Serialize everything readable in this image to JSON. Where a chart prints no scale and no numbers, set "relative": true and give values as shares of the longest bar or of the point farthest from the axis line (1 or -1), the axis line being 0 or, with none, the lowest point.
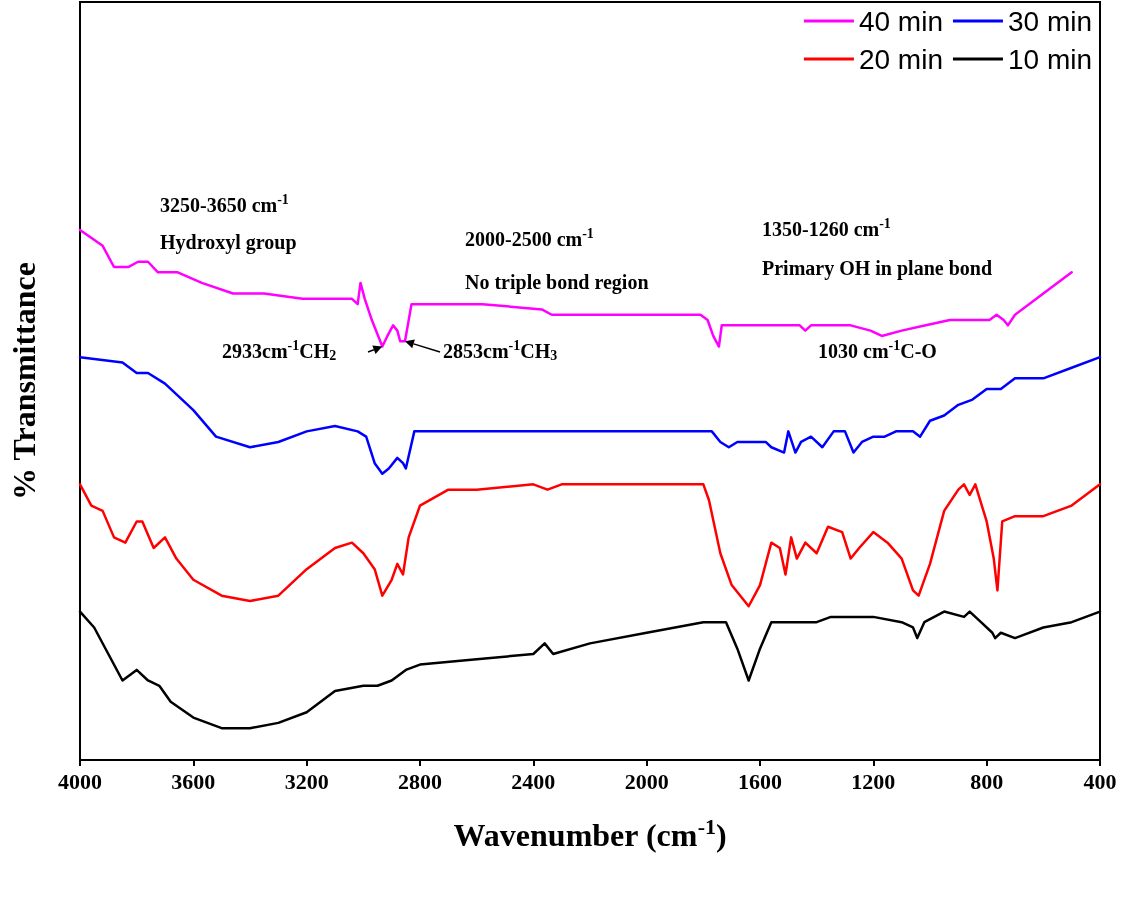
{
  "chart_data": {
    "type": "line",
    "relative": true,
    "xlabel": "Wavenumber (cm$^{-1}$)",
    "ylabel": "% Transmittance",
    "xlim": [
      4000,
      400
    ],
    "xticks": [
      4000,
      3600,
      3200,
      2800,
      2400,
      2000,
      1600,
      1200,
      800,
      400
    ],
    "legend": "top right",
    "marker": "none",
    "line_style": "solid",
    "annotations": [
      "3250-3650 cm$^{-1}$",
      "Hydroxyl group",
      "2000-2500 cm$^{-1}$",
      "No triple bond region",
      "1350-1260 cm$^{-1}$",
      "Primary OH in plane bond",
      {
        "text": "2933cm$^{-1}$CH$_{2}$",
        "x": 2933,
        "y": 0.78
      },
      {
        "text": "2853cm$^{-1}$CH$_{3}$",
        "x": 2853,
        "y": 0.79
      },
      "1030 cm$^{-1}$C-O"
    ],
    "series": [
      {
        "name": "40 min",
        "color": "#ff00ff",
        "x": [
          4000,
          3920,
          3880,
          3830,
          3795,
          3760,
          3725,
          3655,
          3570,
          3460,
          3350,
          3215,
          3075,
          3040,
          3020,
          3010,
          2995,
          2970,
          2933,
          2915,
          2895,
          2880,
          2870,
          2853,
          2830,
          2790,
          2580,
          2370,
          2335,
          2300,
          2160,
          1985,
          1810,
          1785,
          1765,
          1745,
          1735,
          1665,
          1490,
          1460,
          1440,
          1420,
          1280,
          1210,
          1170,
          1100,
          1015,
          930,
          790,
          765,
          740,
          725,
          700,
          600,
          500
        ],
        "values": [
          1.0,
          0.97,
          0.93,
          0.93,
          0.94,
          0.94,
          0.92,
          0.92,
          0.9,
          0.88,
          0.88,
          0.87,
          0.87,
          0.87,
          0.86,
          0.9,
          0.87,
          0.83,
          0.78,
          0.8,
          0.82,
          0.81,
          0.79,
          0.79,
          0.86,
          0.86,
          0.86,
          0.85,
          0.84,
          0.84,
          0.84,
          0.84,
          0.84,
          0.83,
          0.8,
          0.78,
          0.82,
          0.82,
          0.82,
          0.82,
          0.81,
          0.82,
          0.82,
          0.81,
          0.8,
          0.81,
          0.82,
          0.83,
          0.83,
          0.84,
          0.83,
          0.82,
          0.84,
          0.88,
          0.92
        ]
      },
      {
        "name": "30 min",
        "color": "#0000ff",
        "x": [
          4000,
          3850,
          3800,
          3760,
          3700,
          3600,
          3520,
          3400,
          3300,
          3200,
          3100,
          3020,
          2990,
          2960,
          2933,
          2910,
          2880,
          2860,
          2850,
          2820,
          2780,
          2500,
          2200,
          1800,
          1770,
          1740,
          1710,
          1680,
          1620,
          1580,
          1560,
          1515,
          1500,
          1475,
          1455,
          1420,
          1380,
          1340,
          1300,
          1270,
          1240,
          1200,
          1160,
          1120,
          1060,
          1035,
          1000,
          950,
          900,
          850,
          800,
          750,
          700,
          600,
          500,
          400
        ],
        "values": [
          0.76,
          0.75,
          0.73,
          0.73,
          0.71,
          0.66,
          0.61,
          0.59,
          0.6,
          0.62,
          0.63,
          0.62,
          0.61,
          0.56,
          0.54,
          0.55,
          0.57,
          0.56,
          0.55,
          0.62,
          0.62,
          0.62,
          0.62,
          0.62,
          0.62,
          0.6,
          0.59,
          0.6,
          0.6,
          0.6,
          0.59,
          0.58,
          0.62,
          0.58,
          0.6,
          0.61,
          0.59,
          0.62,
          0.62,
          0.58,
          0.6,
          0.61,
          0.61,
          0.62,
          0.62,
          0.61,
          0.64,
          0.65,
          0.67,
          0.68,
          0.7,
          0.7,
          0.72,
          0.72,
          0.74,
          0.76
        ]
      },
      {
        "name": "20 min",
        "color": "#ff0000",
        "x": [
          4000,
          3960,
          3920,
          3880,
          3840,
          3800,
          3780,
          3740,
          3700,
          3660,
          3600,
          3500,
          3400,
          3300,
          3200,
          3100,
          3040,
          3000,
          2960,
          2933,
          2900,
          2880,
          2860,
          2840,
          2800,
          2700,
          2600,
          2400,
          2350,
          2300,
          2000,
          1800,
          1780,
          1740,
          1700,
          1640,
          1600,
          1560,
          1530,
          1510,
          1490,
          1470,
          1440,
          1400,
          1360,
          1310,
          1280,
          1250,
          1200,
          1150,
          1100,
          1060,
          1040,
          1000,
          950,
          900,
          880,
          860,
          840,
          800,
          775,
          762,
          745,
          700,
          600,
          500,
          400
        ],
        "values": [
          0.52,
          0.48,
          0.47,
          0.42,
          0.41,
          0.45,
          0.45,
          0.4,
          0.42,
          0.38,
          0.34,
          0.31,
          0.3,
          0.31,
          0.36,
          0.4,
          0.41,
          0.39,
          0.36,
          0.31,
          0.34,
          0.37,
          0.35,
          0.42,
          0.48,
          0.51,
          0.51,
          0.52,
          0.51,
          0.52,
          0.52,
          0.52,
          0.49,
          0.39,
          0.33,
          0.29,
          0.33,
          0.41,
          0.4,
          0.35,
          0.42,
          0.38,
          0.41,
          0.39,
          0.44,
          0.43,
          0.38,
          0.4,
          0.43,
          0.41,
          0.38,
          0.32,
          0.31,
          0.37,
          0.47,
          0.51,
          0.52,
          0.5,
          0.52,
          0.45,
          0.38,
          0.32,
          0.45,
          0.46,
          0.46,
          0.48,
          0.52
        ]
      },
      {
        "name": "10 min",
        "color": "#000000",
        "x": [
          4000,
          3950,
          3900,
          3850,
          3800,
          3760,
          3720,
          3680,
          3600,
          3500,
          3400,
          3300,
          3200,
          3100,
          3000,
          2950,
          2900,
          2850,
          2800,
          2600,
          2400,
          2360,
          2330,
          2200,
          2000,
          1800,
          1720,
          1680,
          1640,
          1600,
          1560,
          1500,
          1400,
          1350,
          1200,
          1100,
          1060,
          1045,
          1020,
          950,
          880,
          860,
          820,
          780,
          770,
          750,
          700,
          600,
          500,
          400
        ],
        "values": [
          0.28,
          0.25,
          0.2,
          0.15,
          0.17,
          0.15,
          0.14,
          0.11,
          0.08,
          0.06,
          0.06,
          0.07,
          0.09,
          0.13,
          0.14,
          0.14,
          0.15,
          0.17,
          0.18,
          0.19,
          0.2,
          0.22,
          0.2,
          0.22,
          0.24,
          0.26,
          0.26,
          0.21,
          0.15,
          0.21,
          0.26,
          0.26,
          0.26,
          0.27,
          0.27,
          0.26,
          0.25,
          0.23,
          0.26,
          0.28,
          0.27,
          0.28,
          0.26,
          0.24,
          0.23,
          0.24,
          0.23,
          0.25,
          0.26,
          0.28
        ]
      }
    ]
  }
}
